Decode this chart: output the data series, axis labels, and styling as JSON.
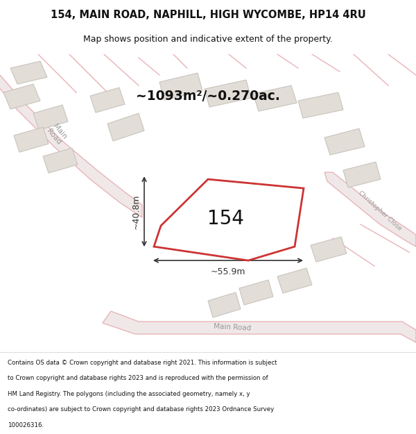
{
  "title_line1": "154, MAIN ROAD, NAPHILL, HIGH WYCOMBE, HP14 4RU",
  "title_line2": "Map shows position and indicative extent of the property.",
  "area_text": "~1093m²/~0.270ac.",
  "property_number": "154",
  "dim_width": "~55.9m",
  "dim_height": "~40.8m",
  "footer_lines": [
    "Contains OS data © Crown copyright and database right 2021. This information is subject",
    "to Crown copyright and database rights 2023 and is reproduced with the permission of",
    "HM Land Registry. The polygons (including the associated geometry, namely x, y",
    "co-ordinates) are subject to Crown copyright and database rights 2023 Ordnance Survey",
    "100026316."
  ],
  "map_bg_color": "#f5f2ee",
  "road_color": "#e8b4b8",
  "road_fill_color": "#f0e8e8",
  "highlight_color": "#cc3333",
  "building_fill": "#e2ddd6",
  "building_edge": "#c8c4be",
  "white_bg": "#ffffff",
  "road_label_color": "#999999",
  "dim_color": "#333333",
  "text_color": "#111111"
}
